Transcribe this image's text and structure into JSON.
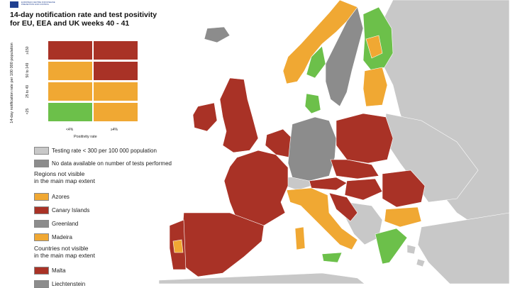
{
  "header": {
    "logo_text": "EUROPEAN CENTRE FOR DISEASE PREVENTION AND CONTROL",
    "title_line1": "14-day notification rate and test positivity",
    "title_line2": "for EU, EEA and UK weeks 40 - 41"
  },
  "legend_grid": {
    "y_axis_title": "14-day notification rate per 100 000 population",
    "x_axis_title": "Positivity rate",
    "y_ticks": [
      "≥150",
      "50 to 149",
      "25 to 49",
      "<25"
    ],
    "x_ticks": [
      "<4%",
      "≥4%"
    ],
    "cells": [
      [
        "#a93226",
        "#a93226"
      ],
      [
        "#f0a833",
        "#a93226"
      ],
      [
        "#f0a833",
        "#f0a833"
      ],
      [
        "#6cc04a",
        "#f0a833"
      ]
    ]
  },
  "legend": {
    "testing_rate": "Testing rate < 300 per 100 000 population",
    "no_data": "No data available on number of tests performed",
    "regions_title_1": "Regions not visible",
    "regions_title_2": "in the main map extent",
    "regions": [
      {
        "label": "Azores",
        "color": "#f0a833"
      },
      {
        "label": "Canary Islands",
        "color": "#a93226"
      },
      {
        "label": "Greenland",
        "color": "#8c8c8c"
      },
      {
        "label": "Madeira",
        "color": "#f0a833"
      }
    ],
    "countries_title_1": "Countries not visible",
    "countries_title_2": "in the main map extent",
    "countries": [
      {
        "label": "Malta",
        "color": "#a93226"
      },
      {
        "label": "Liechtenstein",
        "color": "#8c8c8c"
      }
    ]
  },
  "colors": {
    "red": "#a93226",
    "orange": "#f0a833",
    "green": "#6cc04a",
    "dark_grey": "#8c8c8c",
    "light_grey": "#c8c8c8",
    "sea": "#ffffff"
  }
}
